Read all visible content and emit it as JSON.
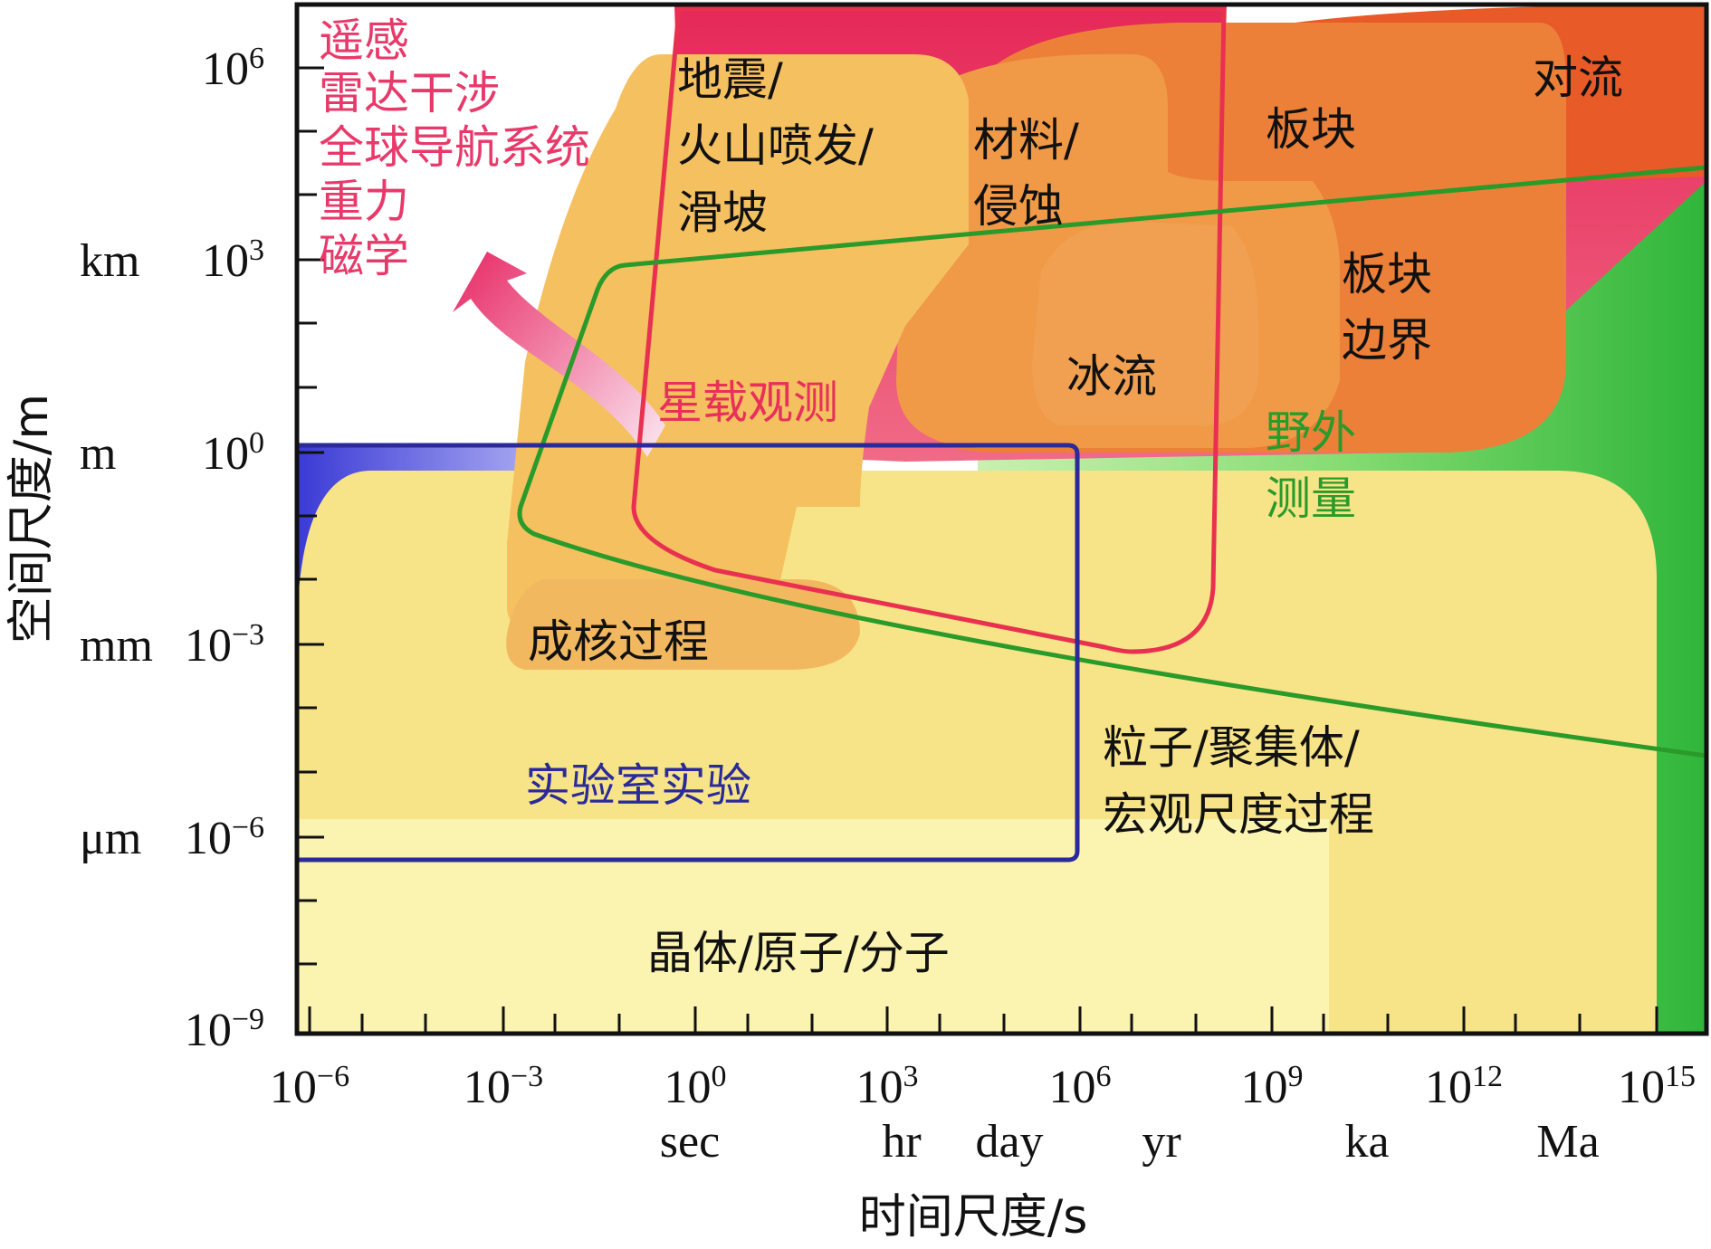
{
  "y_axis": {
    "title": "空间尺度/m",
    "ticks": [
      {
        "sup": "6",
        "unit": ""
      },
      {
        "sup": "3",
        "unit": "km"
      },
      {
        "sup": "0",
        "unit": "m"
      },
      {
        "sup": "−3",
        "unit": "mm"
      },
      {
        "sup": "−6",
        "unit": "μm"
      },
      {
        "sup": "−9",
        "unit": ""
      }
    ]
  },
  "x_axis": {
    "title": "时间尺度/s",
    "ticks": [
      {
        "sup": "−6"
      },
      {
        "sup": "−3"
      },
      {
        "sup": "0"
      },
      {
        "sup": "3"
      },
      {
        "sup": "6"
      },
      {
        "sup": "9"
      },
      {
        "sup": "12"
      },
      {
        "sup": "15"
      }
    ],
    "units": [
      "sec",
      "hr",
      "day",
      "yr",
      "ka",
      "Ma"
    ]
  },
  "regions": {
    "earthquake": [
      "地震/",
      "火山喷发/",
      "滑坡"
    ],
    "materials": [
      "材料/",
      "侵蚀"
    ],
    "plates": "板块",
    "convection": "对流",
    "plate_boundary": [
      "板块",
      "边界"
    ],
    "ice_flow": "冰流",
    "nucleation": "成核过程",
    "particles": [
      "粒子/聚集体/",
      "宏观尺度过程"
    ],
    "crystals": "晶体/原子/分子"
  },
  "methods": {
    "remote_sensing": [
      "遥感",
      "雷达干涉",
      "全球导航系统",
      "重力",
      "磁学"
    ],
    "satellite": "星载观测",
    "field": [
      "野外",
      "测量"
    ],
    "lab": "实验室实验"
  },
  "colors": {
    "pink": "#e8305a",
    "green": "#2a9a2a",
    "blue": "#2a2a8a",
    "orange": "#ec7a3a",
    "yellow": "#f8e488"
  }
}
